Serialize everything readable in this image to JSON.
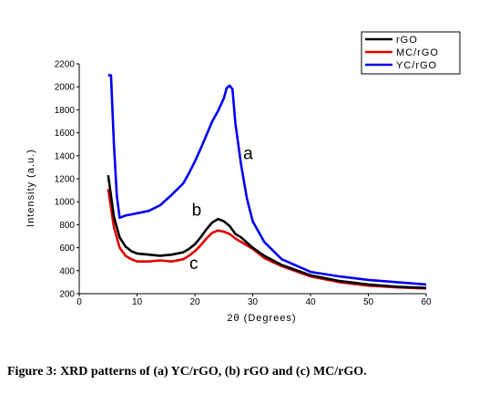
{
  "caption": "Figure 3: XRD patterns of (a) YC/rGO, (b) rGO and (c) MC/rGO.",
  "chart_data": {
    "type": "line",
    "xlabel": "2θ (Degrees)",
    "ylabel": "Intensity (a.u.)",
    "xlim": [
      0,
      60
    ],
    "ylim": [
      200,
      2200
    ],
    "xticks": [
      "0",
      "10",
      "20",
      "30",
      "40",
      "50",
      "60"
    ],
    "yticks": [
      "200",
      "400",
      "600",
      "800",
      "1000",
      "1200",
      "1400",
      "1600",
      "1800",
      "2000",
      "2200"
    ],
    "legend_position": "top-right",
    "series": [
      {
        "name": "rGO",
        "color": "#000000",
        "label": "b",
        "x": [
          5,
          6,
          7,
          8,
          9,
          10,
          12,
          14,
          16,
          18,
          19,
          20,
          21,
          22,
          23,
          24,
          25,
          26,
          27,
          28,
          30,
          32,
          35,
          40,
          45,
          50,
          55,
          60
        ],
        "y": [
          1230,
          870,
          690,
          610,
          570,
          550,
          540,
          530,
          540,
          560,
          590,
          630,
          690,
          760,
          820,
          850,
          830,
          790,
          720,
          690,
          600,
          530,
          450,
          360,
          310,
          280,
          260,
          250
        ]
      },
      {
        "name": "MC/rGO",
        "color": "#e00000",
        "label": "c",
        "x": [
          5,
          6,
          7,
          8,
          9,
          10,
          12,
          14,
          16,
          18,
          19,
          20,
          21,
          22,
          23,
          24,
          25,
          26,
          27,
          28,
          30,
          32,
          35,
          40,
          45,
          50,
          55,
          60
        ],
        "y": [
          1110,
          780,
          600,
          530,
          500,
          480,
          480,
          490,
          480,
          500,
          530,
          570,
          620,
          680,
          730,
          750,
          740,
          720,
          680,
          650,
          590,
          510,
          440,
          350,
          300,
          270,
          255,
          245
        ]
      },
      {
        "name": "YC/rGO",
        "color": "#0000ee",
        "label": "a",
        "x": [
          5,
          5.5,
          6,
          6.5,
          7,
          8,
          9,
          10,
          12,
          14,
          16,
          18,
          19,
          20,
          21,
          22,
          23,
          24,
          25,
          25.5,
          26,
          26.5,
          27,
          28,
          29,
          30,
          32,
          35,
          40,
          45,
          50,
          55,
          60
        ],
        "y": [
          2100,
          2100,
          1500,
          1050,
          860,
          880,
          890,
          900,
          920,
          970,
          1060,
          1160,
          1250,
          1350,
          1460,
          1580,
          1700,
          1790,
          1900,
          1990,
          2010,
          1980,
          1680,
          1320,
          1030,
          830,
          650,
          500,
          390,
          350,
          320,
          300,
          280
        ]
      }
    ],
    "annotations": [
      "a",
      "b",
      "c"
    ]
  }
}
